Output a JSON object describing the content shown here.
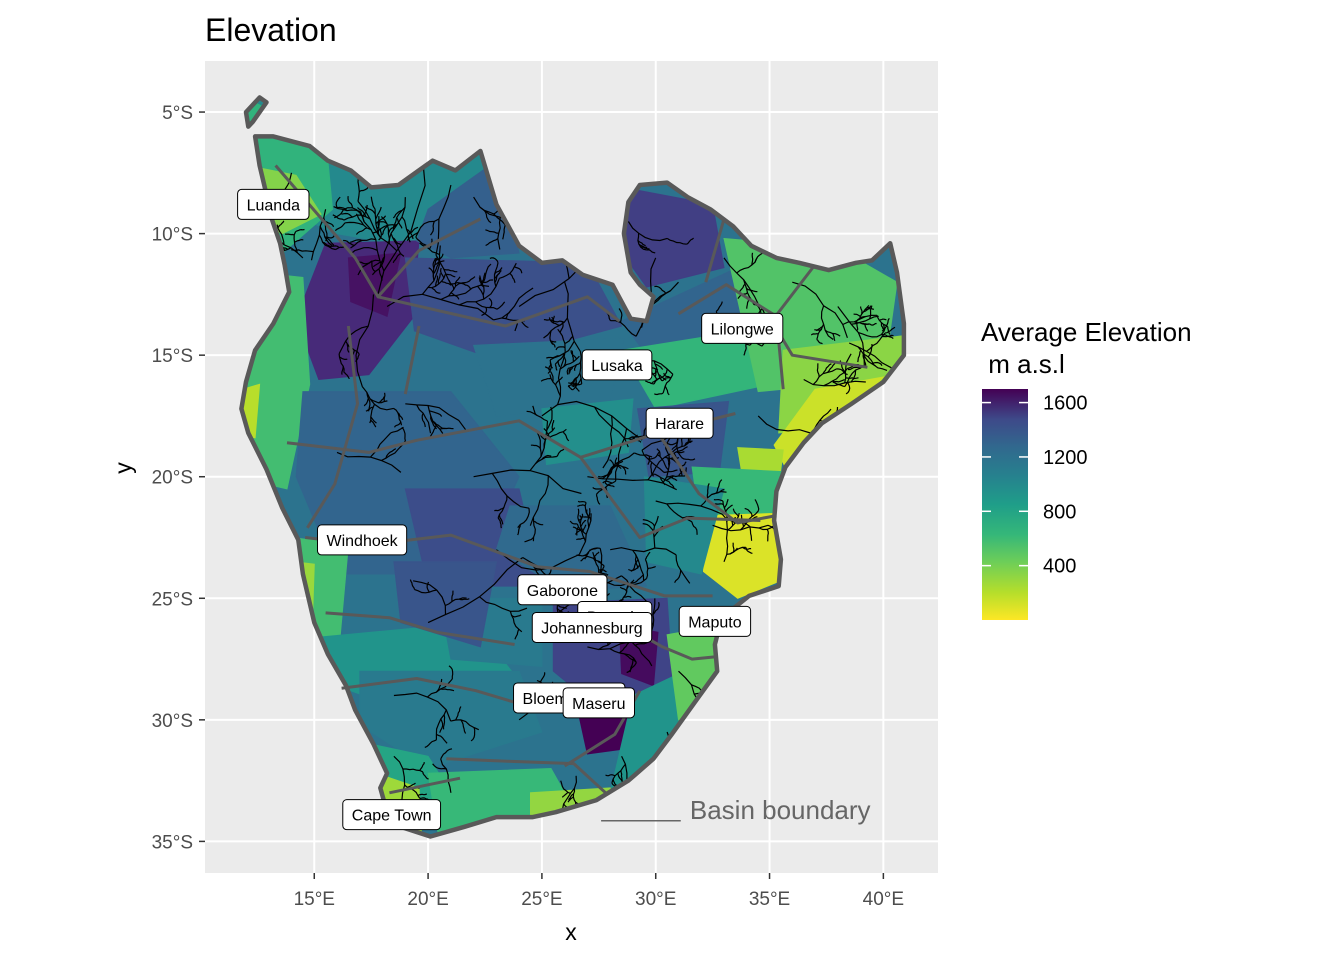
{
  "title": "Elevation",
  "axes": {
    "x_title": "x",
    "y_title": "y",
    "x_ticks": [
      {
        "value": 15,
        "label": "15°E"
      },
      {
        "value": 20,
        "label": "20°E"
      },
      {
        "value": 25,
        "label": "25°E"
      },
      {
        "value": 30,
        "label": "30°E"
      },
      {
        "value": 35,
        "label": "35°E"
      },
      {
        "value": 40,
        "label": "40°E"
      }
    ],
    "y_ticks": [
      {
        "value": -5,
        "label": "5°S"
      },
      {
        "value": -10,
        "label": "10°S"
      },
      {
        "value": -15,
        "label": "15°S"
      },
      {
        "value": -20,
        "label": "20°S"
      },
      {
        "value": -25,
        "label": "25°S"
      },
      {
        "value": -30,
        "label": "30°S"
      },
      {
        "value": -35,
        "label": "35°S"
      }
    ],
    "xlim": [
      10.2,
      42.4
    ],
    "ylim": [
      -36.3,
      -2.9
    ]
  },
  "legend": {
    "title_line1": "Average Elevation",
    "title_line2": " m a.s.l",
    "ticks": [
      {
        "value": 1600,
        "label": "1600"
      },
      {
        "value": 1200,
        "label": "1200"
      },
      {
        "value": 800,
        "label": "800"
      },
      {
        "value": 400,
        "label": "400"
      }
    ],
    "range": [
      0,
      1700
    ],
    "palette": "viridis"
  },
  "annotation": {
    "label": "Basin boundary",
    "line_lon": [
      27.6,
      31.1
    ],
    "lat": -33.7,
    "text_lon": 31.5
  },
  "cities": [
    {
      "name": "Luanda",
      "lon": 13.2,
      "lat": -8.8
    },
    {
      "name": "Lilongwe",
      "lon": 33.8,
      "lat": -13.9
    },
    {
      "name": "Lusaka",
      "lon": 28.3,
      "lat": -15.4
    },
    {
      "name": "Harare",
      "lon": 31.05,
      "lat": -17.8
    },
    {
      "name": "Windhoek",
      "lon": 17.1,
      "lat": -22.6
    },
    {
      "name": "Gaborone",
      "lon": 25.9,
      "lat": -24.65
    },
    {
      "name": "Pretoria",
      "lon": 28.2,
      "lat": -25.75
    },
    {
      "name": "Maputo",
      "lon": 32.6,
      "lat": -25.95
    },
    {
      "name": "Johannesburg",
      "lon": 27.2,
      "lat": -26.2
    },
    {
      "name": "Bloemfontein",
      "lon": 26.2,
      "lat": -29.1
    },
    {
      "name": "Maseru",
      "lon": 27.5,
      "lat": -29.3
    },
    {
      "name": "Cape Town",
      "lon": 18.4,
      "lat": -33.9
    }
  ],
  "colors": {
    "panel_bg": "#ebebeb",
    "grid": "#ffffff",
    "boundary": "#595959",
    "rivers": "#000000"
  }
}
